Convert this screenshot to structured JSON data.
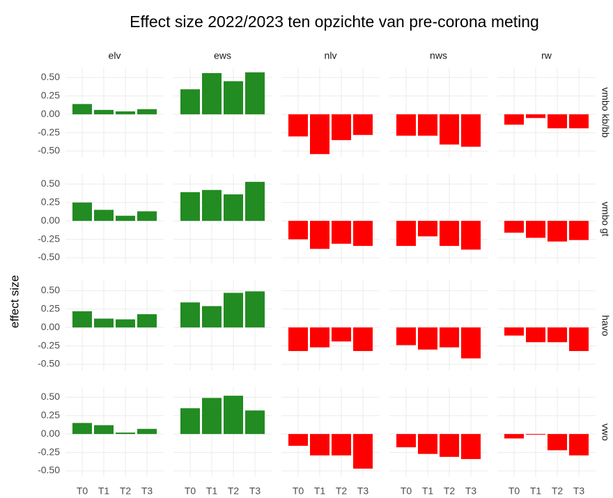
{
  "chart_data": {
    "type": "bar",
    "title": "Effect size 2022/2023 ten opzichte van pre-corona meting",
    "y_label": "effect size",
    "columns": [
      "elv",
      "ews",
      "nlv",
      "nws",
      "rw"
    ],
    "rows": [
      "vmbo kb/bb",
      "vmbo gt",
      "havo",
      "vwo"
    ],
    "categories": [
      "T0",
      "T1",
      "T2",
      "T3"
    ],
    "values": [
      [
        [
          0.14,
          0.06,
          0.04,
          0.07
        ],
        [
          0.34,
          0.56,
          0.45,
          0.57
        ],
        [
          -0.3,
          -0.54,
          -0.35,
          -0.28
        ],
        [
          -0.29,
          -0.29,
          -0.41,
          -0.44
        ],
        [
          -0.14,
          -0.05,
          -0.19,
          -0.19
        ]
      ],
      [
        [
          0.25,
          0.15,
          0.07,
          0.13
        ],
        [
          0.39,
          0.42,
          0.36,
          0.53
        ],
        [
          -0.25,
          -0.38,
          -0.31,
          -0.34
        ],
        [
          -0.34,
          -0.21,
          -0.34,
          -0.39
        ],
        [
          -0.16,
          -0.23,
          -0.28,
          -0.26
        ]
      ],
      [
        [
          0.22,
          0.12,
          0.11,
          0.18
        ],
        [
          0.34,
          0.29,
          0.47,
          0.49
        ],
        [
          -0.32,
          -0.27,
          -0.19,
          -0.32
        ],
        [
          -0.24,
          -0.3,
          -0.27,
          -0.42
        ],
        [
          -0.11,
          -0.2,
          -0.2,
          -0.32
        ]
      ],
      [
        [
          0.15,
          0.12,
          0.02,
          0.07
        ],
        [
          0.35,
          0.49,
          0.52,
          0.32
        ],
        [
          -0.16,
          -0.29,
          -0.29,
          -0.47
        ],
        [
          -0.18,
          -0.27,
          -0.31,
          -0.34
        ],
        [
          -0.06,
          -0.01,
          -0.22,
          -0.29
        ]
      ]
    ],
    "colors": {
      "positive": "#228b22",
      "negative": "#ff0000"
    },
    "ylim": [
      -0.585,
      0.635
    ],
    "yticks": [
      {
        "value": -0.5,
        "label": "-0.50"
      },
      {
        "value": -0.25,
        "label": "-0.25"
      },
      {
        "value": 0,
        "label": "0.00"
      },
      {
        "value": 0.25,
        "label": "0.25"
      },
      {
        "value": 0.5,
        "label": "0.50"
      }
    ],
    "grid": true
  }
}
